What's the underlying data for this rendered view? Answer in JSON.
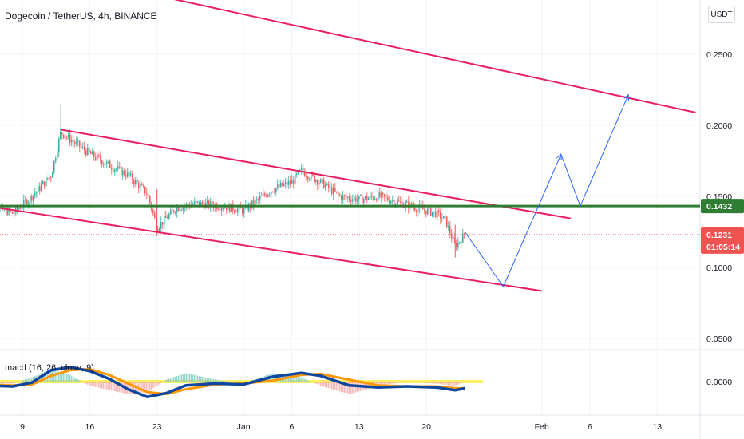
{
  "header": {
    "symbol_title": "Dogecoin / TetherUS, 4h, BINANCE",
    "currency_button": "USDT"
  },
  "indicator": {
    "label": "macd (16, 26, close, 9)"
  },
  "colors": {
    "up": "#26a69a",
    "down": "#ef5350",
    "channel": "#e91e63",
    "support": "#2e7d32",
    "projection": "#2962ff",
    "macd_line": "#0d47a1",
    "signal_line": "#ff9800"
  },
  "chart_data": [
    {
      "type": "candlestick",
      "title": "Dogecoin / TetherUS, 4h, BINANCE",
      "y_axis": {
        "ticks": [
          0.05,
          0.1,
          0.15,
          0.2,
          0.25
        ],
        "tick_labels": [
          "0.0500",
          "0.1000",
          "0.1500",
          "0.2000",
          "0.2500"
        ],
        "range": [
          0.03,
          0.29
        ]
      },
      "x_axis": {
        "ticks": [
          "9",
          "16",
          "23",
          "Jan",
          "6",
          "13",
          "20",
          "Feb",
          "6",
          "13"
        ]
      },
      "last_price": {
        "value": 0.1231,
        "label": "0.1231",
        "countdown": "01:05:14"
      },
      "support_level": {
        "value": 0.1432,
        "label": "0.1432"
      },
      "price_path": [
        {
          "date": "2020-12-05",
          "value": 0.145
        },
        {
          "date": "2020-12-08",
          "value": 0.138
        },
        {
          "date": "2020-12-10",
          "value": 0.15
        },
        {
          "date": "2020-12-12",
          "value": 0.165
        },
        {
          "date": "2020-12-13",
          "value": 0.195
        },
        {
          "date": "2020-12-14",
          "value": 0.19
        },
        {
          "date": "2020-12-16",
          "value": 0.18
        },
        {
          "date": "2020-12-18",
          "value": 0.172
        },
        {
          "date": "2020-12-20",
          "value": 0.165
        },
        {
          "date": "2020-12-22",
          "value": 0.152
        },
        {
          "date": "2020-12-23",
          "value": 0.128
        },
        {
          "date": "2020-12-25",
          "value": 0.142
        },
        {
          "date": "2020-12-27",
          "value": 0.145
        },
        {
          "date": "2020-12-30",
          "value": 0.143
        },
        {
          "date": "2021-01-01",
          "value": 0.14
        },
        {
          "date": "2021-01-04",
          "value": 0.155
        },
        {
          "date": "2021-01-06",
          "value": 0.16
        },
        {
          "date": "2021-01-07",
          "value": 0.168
        },
        {
          "date": "2021-01-09",
          "value": 0.16
        },
        {
          "date": "2021-01-11",
          "value": 0.15
        },
        {
          "date": "2021-01-13",
          "value": 0.148
        },
        {
          "date": "2021-01-15",
          "value": 0.15
        },
        {
          "date": "2021-01-17",
          "value": 0.146
        },
        {
          "date": "2021-01-19",
          "value": 0.142
        },
        {
          "date": "2021-01-21",
          "value": 0.138
        },
        {
          "date": "2021-01-22",
          "value": 0.133
        },
        {
          "date": "2021-01-23",
          "value": 0.115
        },
        {
          "date": "2021-01-24",
          "value": 0.1231
        }
      ],
      "trendlines": {
        "outer_upper": [
          {
            "date": "2020-12-11",
            "value": 0.309
          },
          {
            "date": "2021-02-17",
            "value": 0.209
          }
        ],
        "channel_upper": [
          {
            "date": "2020-12-13",
            "value": 0.197
          },
          {
            "date": "2021-02-04",
            "value": 0.1345
          }
        ],
        "channel_lower": [
          {
            "date": "2020-12-05",
            "value": 0.1435
          },
          {
            "date": "2021-02-01",
            "value": 0.0835
          }
        ],
        "projection": [
          {
            "date": "2021-01-24",
            "value": 0.125
          },
          {
            "date": "2021-01-28",
            "value": 0.0865
          },
          {
            "date": "2021-02-03",
            "value": 0.1795
          },
          {
            "date": "2021-02-05",
            "value": 0.1432
          },
          {
            "date": "2021-02-10",
            "value": 0.2215
          }
        ]
      }
    },
    {
      "type": "line",
      "title": "macd (16, 26, close, 9)",
      "y_axis": {
        "ticks": [
          0.0
        ],
        "tick_labels": [
          "0.0000"
        ]
      },
      "series": [
        {
          "name": "macd",
          "x": [
            "2020-12-05",
            "2020-12-08",
            "2020-12-10",
            "2020-12-12",
            "2020-12-14",
            "2020-12-16",
            "2020-12-18",
            "2020-12-20",
            "2020-12-22",
            "2020-12-24",
            "2020-12-26",
            "2020-12-29",
            "2021-01-01",
            "2021-01-04",
            "2021-01-07",
            "2021-01-09",
            "2021-01-12",
            "2021-01-15",
            "2021-01-18",
            "2021-01-21",
            "2021-01-23",
            "2021-01-24"
          ],
          "values": [
            -0.004,
            -0.005,
            -0.001,
            0.012,
            0.015,
            0.011,
            0.003,
            -0.008,
            -0.016,
            -0.012,
            -0.004,
            -0.002,
            -0.003,
            0.005,
            0.009,
            0.006,
            -0.004,
            -0.006,
            -0.005,
            -0.006,
            -0.009,
            -0.007
          ]
        },
        {
          "name": "signal",
          "x": [
            "2020-12-05",
            "2020-12-08",
            "2020-12-10",
            "2020-12-12",
            "2020-12-14",
            "2020-12-16",
            "2020-12-18",
            "2020-12-20",
            "2020-12-22",
            "2020-12-24",
            "2020-12-26",
            "2020-12-29",
            "2021-01-01",
            "2021-01-04",
            "2021-01-07",
            "2021-01-09",
            "2021-01-12",
            "2021-01-15",
            "2021-01-18",
            "2021-01-21",
            "2021-01-23",
            "2021-01-24"
          ],
          "values": [
            -0.003,
            -0.004,
            -0.003,
            0.006,
            0.012,
            0.013,
            0.007,
            -0.002,
            -0.011,
            -0.013,
            -0.008,
            -0.003,
            -0.002,
            0.001,
            0.007,
            0.008,
            0.002,
            -0.004,
            -0.005,
            -0.005,
            -0.007,
            -0.007
          ]
        }
      ]
    }
  ]
}
